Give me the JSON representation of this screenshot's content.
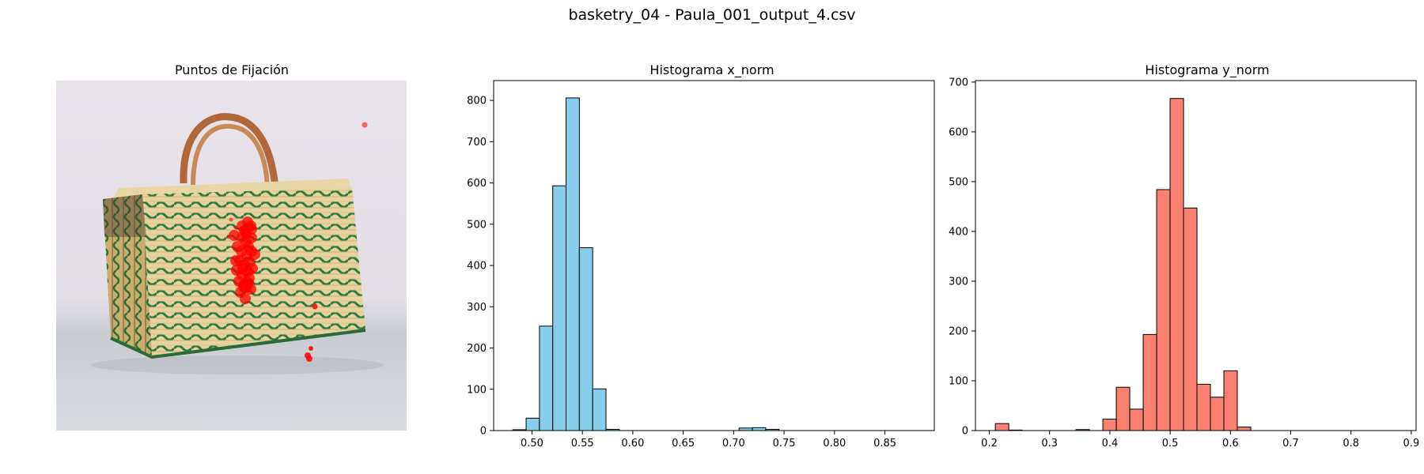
{
  "figure": {
    "suptitle": "basketry_04 - Paula_001_output_4.csv"
  },
  "image_panel": {
    "title": "Puntos de Fijación",
    "description_icon": "basket-photo",
    "fixation_color": "#ff0000"
  },
  "chart_data": [
    {
      "type": "bar",
      "title": "Histograma x_norm",
      "xlabel": "",
      "ylabel": "",
      "color": "#87ceeb",
      "edgecolor": "#000000",
      "xlim": [
        0.462,
        0.899
      ],
      "ylim": [
        0,
        848
      ],
      "xticks": [
        "0.50",
        "0.55",
        "0.60",
        "0.65",
        "0.70",
        "0.75",
        "0.80",
        "0.85"
      ],
      "yticks": [
        "0",
        "100",
        "200",
        "300",
        "400",
        "500",
        "600",
        "700",
        "800"
      ],
      "bin_width": 0.0132,
      "bins": [
        {
          "x0": 0.481,
          "value": 2
        },
        {
          "x0": 0.4942,
          "value": 30
        },
        {
          "x0": 0.5074,
          "value": 253
        },
        {
          "x0": 0.5206,
          "value": 593
        },
        {
          "x0": 0.5338,
          "value": 806
        },
        {
          "x0": 0.547,
          "value": 443
        },
        {
          "x0": 0.5602,
          "value": 101
        },
        {
          "x0": 0.5734,
          "value": 3
        },
        {
          "x0": 0.5866,
          "value": 0
        },
        {
          "x0": 0.5998,
          "value": 0
        },
        {
          "x0": 0.613,
          "value": 0
        },
        {
          "x0": 0.6262,
          "value": 0
        },
        {
          "x0": 0.6394,
          "value": 0
        },
        {
          "x0": 0.6526,
          "value": 0
        },
        {
          "x0": 0.6658,
          "value": 0
        },
        {
          "x0": 0.679,
          "value": 0
        },
        {
          "x0": 0.6922,
          "value": 0
        },
        {
          "x0": 0.7054,
          "value": 6
        },
        {
          "x0": 0.7186,
          "value": 7
        },
        {
          "x0": 0.7318,
          "value": 3
        },
        {
          "x0": 0.745,
          "value": 0
        },
        {
          "x0": 0.7582,
          "value": 0
        },
        {
          "x0": 0.7714,
          "value": 0
        },
        {
          "x0": 0.7846,
          "value": 0
        },
        {
          "x0": 0.7978,
          "value": 0
        },
        {
          "x0": 0.811,
          "value": 0
        },
        {
          "x0": 0.8242,
          "value": 0
        },
        {
          "x0": 0.8374,
          "value": 0
        },
        {
          "x0": 0.8506,
          "value": 0
        },
        {
          "x0": 0.8638,
          "value": 0
        }
      ]
    },
    {
      "type": "bar",
      "title": "Histograma y_norm",
      "xlabel": "",
      "ylabel": "",
      "color": "#fa8072",
      "edgecolor": "#000000",
      "xlim": [
        0.177,
        0.908
      ],
      "ylim": [
        0,
        703
      ],
      "xticks": [
        "0.2",
        "0.3",
        "0.4",
        "0.5",
        "0.6",
        "0.7",
        "0.8",
        "0.9"
      ],
      "yticks": [
        "0",
        "100",
        "200",
        "300",
        "400",
        "500",
        "600",
        "700"
      ],
      "bin_width": 0.0223,
      "bins": [
        {
          "x0": 0.21,
          "value": 14
        },
        {
          "x0": 0.2323,
          "value": 1
        },
        {
          "x0": 0.2546,
          "value": 0
        },
        {
          "x0": 0.2769,
          "value": 0
        },
        {
          "x0": 0.2992,
          "value": 0
        },
        {
          "x0": 0.3215,
          "value": 0
        },
        {
          "x0": 0.3438,
          "value": 2
        },
        {
          "x0": 0.3661,
          "value": 0
        },
        {
          "x0": 0.3884,
          "value": 23
        },
        {
          "x0": 0.4107,
          "value": 87
        },
        {
          "x0": 0.433,
          "value": 43
        },
        {
          "x0": 0.4553,
          "value": 193
        },
        {
          "x0": 0.4776,
          "value": 484
        },
        {
          "x0": 0.4999,
          "value": 667
        },
        {
          "x0": 0.5222,
          "value": 447
        },
        {
          "x0": 0.5445,
          "value": 93
        },
        {
          "x0": 0.5668,
          "value": 67
        },
        {
          "x0": 0.5891,
          "value": 120
        },
        {
          "x0": 0.6114,
          "value": 7
        },
        {
          "x0": 0.6337,
          "value": 0
        },
        {
          "x0": 0.656,
          "value": 0
        },
        {
          "x0": 0.6783,
          "value": 0
        },
        {
          "x0": 0.7006,
          "value": 0
        },
        {
          "x0": 0.7229,
          "value": 0
        },
        {
          "x0": 0.7452,
          "value": 0
        },
        {
          "x0": 0.7675,
          "value": 0
        },
        {
          "x0": 0.7898,
          "value": 0
        },
        {
          "x0": 0.8121,
          "value": 0
        },
        {
          "x0": 0.8344,
          "value": 0
        },
        {
          "x0": 0.8567,
          "value": 0
        }
      ]
    }
  ]
}
